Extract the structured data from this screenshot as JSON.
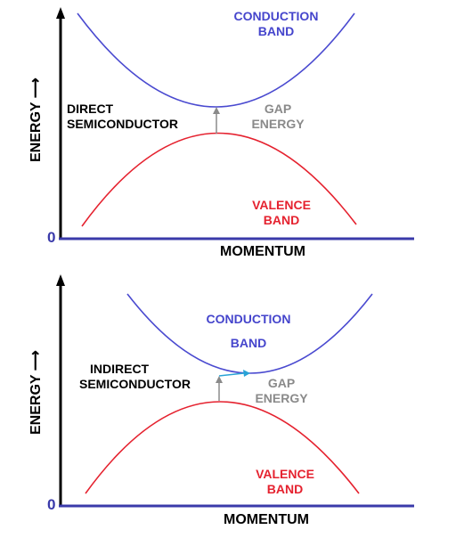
{
  "colors": {
    "conduction": "#4a4ad0",
    "valence": "#e5222f",
    "axis": "#3a3aaa",
    "gap_arrow": "#8a8a8a",
    "momentum_arrow": "#29a3d6"
  },
  "top": {
    "conduction_label": [
      "CONDUCTION",
      "BAND"
    ],
    "valence_label": [
      "VALENCE",
      "BAND"
    ],
    "type_label": [
      "DIRECT",
      "SEMICONDUCTOR"
    ],
    "gap_label": [
      "GAP",
      "ENERGY"
    ],
    "y_axis_label": "ENERGY ⟶",
    "x_axis_label": "MOMENTUM",
    "origin_label": "0"
  },
  "bottom": {
    "conduction_label": [
      "CONDUCTION",
      "BAND"
    ],
    "valence_label": [
      "VALENCE",
      "BAND"
    ],
    "type_label": [
      "INDIRECT",
      "SEMICONDUCTOR"
    ],
    "gap_label": [
      "GAP",
      "ENERGY"
    ],
    "y_axis_label": "ENERGY ⟶",
    "x_axis_label": "MOMENTUM",
    "origin_label": "0"
  }
}
